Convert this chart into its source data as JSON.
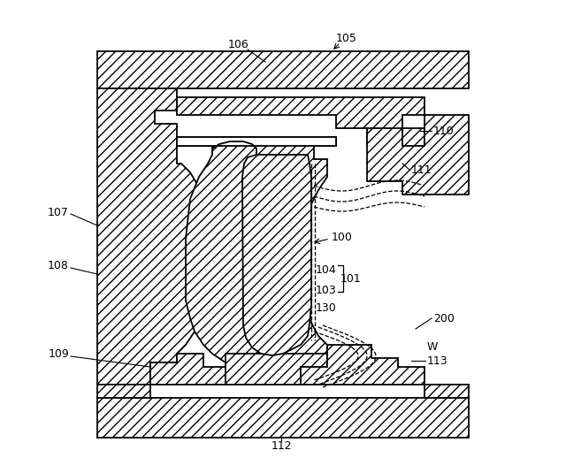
{
  "background_color": "#ffffff",
  "line_color": "#000000",
  "fig_width": 6.4,
  "fig_height": 5.35,
  "dpi": 100
}
